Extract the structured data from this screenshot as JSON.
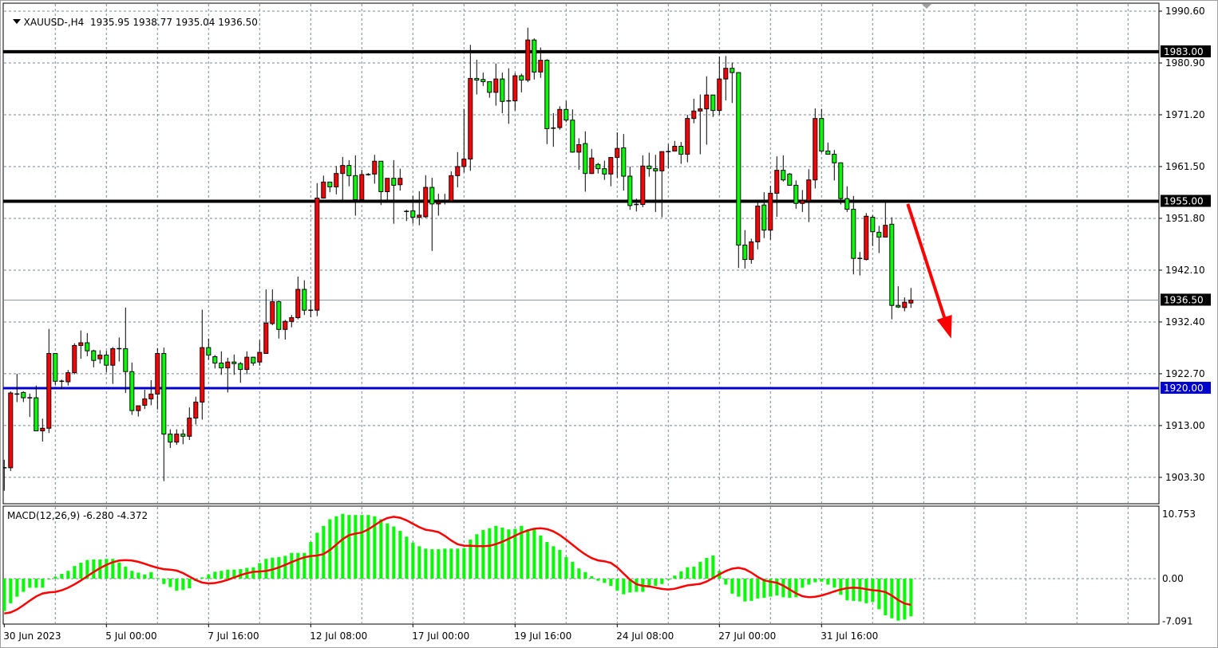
{
  "header": {
    "symbol": "XAUUSD-,H4",
    "ohlc": "1935.95 1938.77 1935.04 1936.50"
  },
  "macd_label": "MACD(12,26,9) -6.280 -4.372",
  "colors": {
    "bull_candle": "#ff0000",
    "bear_candle": "#00ff00",
    "candle_outline": "#000000",
    "grid": "#778899",
    "macd_histogram": "#00ff00",
    "macd_signal": "#ff0000",
    "support_line": "#0000cc",
    "resistance_line": "#000000",
    "arrow": "#ff0000"
  },
  "chart_data": [
    {
      "type": "candlestick",
      "symbol": "XAUUSD-",
      "timeframe": "H4",
      "ylim": [
        1899.5,
        1992.0
      ],
      "grid": true,
      "price_ticks": [
        "1990.60",
        "1980.90",
        "1971.20",
        "1961.50",
        "1951.80",
        "1942.10",
        "1932.40",
        "1922.70",
        "1913.00",
        "1903.30"
      ],
      "time_labels": [
        {
          "bar": 0,
          "label": "30 Jun 2023"
        },
        {
          "bar": 16,
          "label": "5 Jul 00:00"
        },
        {
          "bar": 32,
          "label": "7 Jul 16:00"
        },
        {
          "bar": 48,
          "label": "12 Jul 08:00"
        },
        {
          "bar": 64,
          "label": "17 Jul 00:00"
        },
        {
          "bar": 80,
          "label": "19 Jul 16:00"
        },
        {
          "bar": 96,
          "label": "24 Jul 08:00"
        },
        {
          "bar": 112,
          "label": "27 Jul 00:00"
        },
        {
          "bar": 128,
          "label": "31 Jul 16:00"
        }
      ],
      "ohlc_columns": [
        "open",
        "high",
        "low",
        "close"
      ],
      "ohlc": [
        [
          1905.1,
          1906.6,
          1900.8,
          1905.1
        ],
        [
          1905.1,
          1919.4,
          1904.5,
          1919.1
        ],
        [
          1918.9,
          1922.7,
          1917.4,
          1918.9
        ],
        [
          1919.2,
          1919.4,
          1917.4,
          1918.2
        ],
        [
          1918.2,
          1919.0,
          1914.6,
          1918.2
        ],
        [
          1918.2,
          1920.5,
          1912.0,
          1912.0
        ],
        [
          1912.0,
          1914.3,
          1910.0,
          1912.5
        ],
        [
          1912.5,
          1931.1,
          1911.6,
          1926.5
        ],
        [
          1926.5,
          1926.5,
          1920.5,
          1921.3
        ],
        [
          1921.3,
          1921.6,
          1919.8,
          1921.3
        ],
        [
          1921.2,
          1923.4,
          1920.5,
          1922.9
        ],
        [
          1922.9,
          1928.4,
          1922.6,
          1928.0
        ],
        [
          1928.0,
          1930.8,
          1925.5,
          1928.5
        ],
        [
          1928.5,
          1930.3,
          1926.0,
          1927.0
        ],
        [
          1927.0,
          1927.2,
          1923.9,
          1925.2
        ],
        [
          1925.5,
          1927.1,
          1924.6,
          1926.2
        ],
        [
          1926.2,
          1927.0,
          1923.0,
          1924.3
        ],
        [
          1924.3,
          1927.7,
          1920.8,
          1927.4
        ],
        [
          1927.4,
          1929.5,
          1925.0,
          1927.4
        ],
        [
          1927.4,
          1935.1,
          1919.1,
          1923.1
        ],
        [
          1923.1,
          1924.8,
          1915.0,
          1915.8
        ],
        [
          1915.8,
          1916.7,
          1914.7,
          1916.7
        ],
        [
          1916.8,
          1919.7,
          1916.1,
          1918.0
        ],
        [
          1918.0,
          1921.5,
          1916.8,
          1918.9
        ],
        [
          1918.9,
          1927.5,
          1916.0,
          1926.5
        ],
        [
          1926.5,
          1927.6,
          1902.6,
          1911.4
        ],
        [
          1911.4,
          1912.3,
          1908.8,
          1909.9
        ],
        [
          1909.9,
          1912.3,
          1909.4,
          1911.4
        ],
        [
          1911.4,
          1912.3,
          1909.5,
          1911.0
        ],
        [
          1911.0,
          1916.4,
          1910.3,
          1914.4
        ],
        [
          1914.4,
          1918.4,
          1913.2,
          1917.4
        ],
        [
          1917.4,
          1934.7,
          1914.1,
          1927.6
        ],
        [
          1927.6,
          1929.3,
          1925.3,
          1926.2
        ],
        [
          1925.9,
          1926.2,
          1923.7,
          1924.7
        ],
        [
          1924.7,
          1926.9,
          1922.5,
          1923.8
        ],
        [
          1923.8,
          1925.7,
          1919.2,
          1924.9
        ],
        [
          1924.9,
          1926.3,
          1922.5,
          1924.6
        ],
        [
          1924.6,
          1924.9,
          1921.0,
          1923.5
        ],
        [
          1923.5,
          1926.9,
          1922.6,
          1925.8
        ],
        [
          1925.8,
          1925.8,
          1924.2,
          1924.7
        ],
        [
          1924.9,
          1929.0,
          1924.2,
          1926.7
        ],
        [
          1926.5,
          1938.5,
          1926.5,
          1932.2
        ],
        [
          1932.1,
          1938.5,
          1931.8,
          1936.2
        ],
        [
          1936.2,
          1936.4,
          1929.3,
          1931.0
        ],
        [
          1931.0,
          1932.8,
          1929.1,
          1932.5
        ],
        [
          1932.5,
          1933.7,
          1931.4,
          1933.2
        ],
        [
          1933.2,
          1940.9,
          1932.9,
          1938.5
        ],
        [
          1938.5,
          1940.2,
          1933.7,
          1934.6
        ],
        [
          1934.6,
          1936.5,
          1933.3,
          1934.6
        ],
        [
          1934.6,
          1958.4,
          1933.5,
          1955.6
        ],
        [
          1955.6,
          1959.8,
          1955.5,
          1958.6
        ],
        [
          1958.6,
          1958.6,
          1956.7,
          1957.7
        ],
        [
          1957.7,
          1961.6,
          1956.3,
          1960.2
        ],
        [
          1960.2,
          1963.3,
          1955.3,
          1961.7
        ],
        [
          1961.7,
          1962.7,
          1957.8,
          1959.8
        ],
        [
          1959.8,
          1963.6,
          1952.3,
          1955.3
        ],
        [
          1955.3,
          1960.9,
          1955.1,
          1960.0
        ],
        [
          1960.0,
          1960.3,
          1959.8,
          1960.0
        ],
        [
          1960.1,
          1963.7,
          1958.3,
          1962.5
        ],
        [
          1962.5,
          1962.5,
          1954.3,
          1956.8
        ],
        [
          1956.8,
          1959.3,
          1955.3,
          1959.3
        ],
        [
          1959.3,
          1962.7,
          1950.8,
          1958.0
        ],
        [
          1958.1,
          1961.1,
          1957.0,
          1959.3
        ],
        [
          1953.1,
          1953.4,
          1951.3,
          1953.1
        ],
        [
          1953.2,
          1956.0,
          1950.8,
          1952.0
        ],
        [
          1952.0,
          1956.9,
          1950.5,
          1952.4
        ],
        [
          1952.1,
          1959.9,
          1951.9,
          1957.6
        ],
        [
          1957.6,
          1959.4,
          1945.7,
          1954.5
        ],
        [
          1954.5,
          1956.4,
          1952.3,
          1954.8
        ],
        [
          1955.1,
          1956.4,
          1954.4,
          1955.1
        ],
        [
          1955.1,
          1960.6,
          1954.8,
          1959.8
        ],
        [
          1959.8,
          1964.2,
          1957.6,
          1961.5
        ],
        [
          1961.5,
          1972.3,
          1960.4,
          1962.9
        ],
        [
          1962.9,
          1984.3,
          1960.7,
          1978.0
        ],
        [
          1978.0,
          1981.5,
          1975.0,
          1977.7
        ],
        [
          1977.8,
          1979.1,
          1976.6,
          1977.4
        ],
        [
          1977.4,
          1977.4,
          1974.4,
          1975.4
        ],
        [
          1975.4,
          1980.8,
          1972.9,
          1977.9
        ],
        [
          1977.9,
          1979.1,
          1971.5,
          1973.7
        ],
        [
          1973.8,
          1979.9,
          1969.5,
          1973.8
        ],
        [
          1973.8,
          1979.0,
          1972.0,
          1978.5
        ],
        [
          1978.5,
          1978.9,
          1975.4,
          1977.7
        ],
        [
          1977.7,
          1987.5,
          1977.3,
          1985.2
        ],
        [
          1985.2,
          1985.5,
          1977.8,
          1979.2
        ],
        [
          1979.2,
          1983.8,
          1978.1,
          1981.4
        ],
        [
          1981.4,
          1981.6,
          1965.7,
          1968.6
        ],
        [
          1968.7,
          1971.5,
          1965.2,
          1968.7
        ],
        [
          1968.8,
          1972.8,
          1968.4,
          1972.2
        ],
        [
          1972.2,
          1973.8,
          1969.8,
          1970.2
        ],
        [
          1970.2,
          1972.2,
          1964.1,
          1964.2
        ],
        [
          1964.2,
          1966.8,
          1960.9,
          1965.6
        ],
        [
          1965.8,
          1968.1,
          1956.8,
          1960.2
        ],
        [
          1960.2,
          1964.8,
          1960.1,
          1963.1
        ],
        [
          1961.9,
          1962.2,
          1960.2,
          1961.1
        ],
        [
          1961.1,
          1962.6,
          1959.0,
          1960.1
        ],
        [
          1960.1,
          1963.2,
          1957.8,
          1963.2
        ],
        [
          1963.2,
          1967.9,
          1959.4,
          1964.9
        ],
        [
          1965.0,
          1967.6,
          1957.0,
          1959.7
        ],
        [
          1959.7,
          1961.5,
          1953.4,
          1954.2
        ],
        [
          1954.4,
          1955.5,
          1953.1,
          1954.4
        ],
        [
          1954.4,
          1963.6,
          1953.9,
          1961.6
        ],
        [
          1961.6,
          1964.1,
          1959.6,
          1961.1
        ],
        [
          1961.1,
          1963.7,
          1953.0,
          1960.7
        ],
        [
          1960.7,
          1964.3,
          1952.0,
          1964.3
        ],
        [
          1964.3,
          1965.7,
          1961.2,
          1964.3
        ],
        [
          1964.4,
          1966.3,
          1964.3,
          1965.3
        ],
        [
          1965.3,
          1966.1,
          1962.0,
          1963.8
        ],
        [
          1963.8,
          1971.2,
          1962.3,
          1970.5
        ],
        [
          1970.5,
          1974.2,
          1969.6,
          1971.9
        ],
        [
          1971.9,
          1975.0,
          1963.8,
          1972.3
        ],
        [
          1972.3,
          1978.4,
          1965.6,
          1974.9
        ],
        [
          1974.9,
          1974.9,
          1970.8,
          1972.0
        ],
        [
          1972.0,
          1982.1,
          1971.2,
          1977.9
        ],
        [
          1977.9,
          1982.2,
          1973.9,
          1979.9
        ],
        [
          1979.9,
          1981.0,
          1973.4,
          1979.1
        ],
        [
          1979.1,
          1979.1,
          1942.5,
          1946.8
        ],
        [
          1946.8,
          1949.6,
          1942.4,
          1944.1
        ],
        [
          1944.1,
          1948.0,
          1943.3,
          1947.4
        ],
        [
          1947.4,
          1954.9,
          1946.0,
          1954.1
        ],
        [
          1954.3,
          1956.7,
          1948.1,
          1949.6
        ],
        [
          1949.6,
          1957.9,
          1947.8,
          1956.5
        ],
        [
          1956.5,
          1963.4,
          1952.1,
          1960.8
        ],
        [
          1960.8,
          1963.6,
          1958.7,
          1959.0
        ],
        [
          1960.1,
          1960.3,
          1957.9,
          1958.0
        ],
        [
          1958.0,
          1958.9,
          1953.6,
          1954.6
        ],
        [
          1954.6,
          1957.1,
          1953.0,
          1955.1
        ],
        [
          1955.1,
          1961.0,
          1951.1,
          1959.0
        ],
        [
          1959.0,
          1972.4,
          1957.4,
          1970.5
        ],
        [
          1970.5,
          1972.3,
          1964.1,
          1964.4
        ],
        [
          1964.4,
          1966.0,
          1963.8,
          1963.8
        ],
        [
          1963.8,
          1964.6,
          1958.9,
          1962.2
        ],
        [
          1962.2,
          1962.3,
          1954.4,
          1955.5
        ],
        [
          1955.5,
          1957.8,
          1953.0,
          1953.5
        ],
        [
          1953.5,
          1956.0,
          1941.3,
          1944.3
        ],
        [
          1944.3,
          1945.5,
          1941.1,
          1944.3
        ],
        [
          1944.1,
          1952.8,
          1943.9,
          1952.2
        ],
        [
          1952.0,
          1952.4,
          1946.6,
          1949.3
        ],
        [
          1949.2,
          1950.4,
          1945.3,
          1948.3
        ],
        [
          1948.3,
          1954.8,
          1948.3,
          1950.5
        ],
        [
          1950.7,
          1952.0,
          1932.9,
          1935.5
        ],
        [
          1935.5,
          1939.1,
          1935.0,
          1935.2
        ],
        [
          1935.1,
          1937.0,
          1934.4,
          1936.1
        ],
        [
          1935.95,
          1938.77,
          1935.04,
          1936.5
        ]
      ],
      "horizontal_lines": [
        {
          "price": 1983.0,
          "label": "1983.00",
          "color": "#000000"
        },
        {
          "price": 1955.0,
          "label": "1955.00",
          "color": "#000000"
        },
        {
          "price": 1920.0,
          "label": "1920.00",
          "color": "#0000cc"
        }
      ],
      "current_price": {
        "price": 1936.5,
        "label": "1936.50"
      },
      "arrow": {
        "from": {
          "bar": 141.5,
          "price": 1954.5
        },
        "to": {
          "bar": 148.3,
          "price": 1929.3
        },
        "direction": "down"
      }
    },
    {
      "type": "bar+line",
      "indicator": "MACD(12,26,9)",
      "ylim": [
        -7.091,
        10.753
      ],
      "ticks": [
        "10.753",
        "0.00",
        "-7.091"
      ],
      "histogram": [
        -5.4,
        -4.1,
        -3.0,
        -2.2,
        -1.5,
        -1.5,
        -1.5,
        -0.1,
        0.35,
        0.8,
        1.3,
        2.1,
        2.65,
        3.1,
        3.2,
        3.2,
        3.3,
        3.3,
        2.7,
        2.0,
        1.3,
        1.0,
        0.7,
        1.1,
        0.1,
        -0.9,
        -1.4,
        -2.0,
        -1.9,
        -1.6,
        -0.4,
        0.2,
        0.7,
        1.15,
        1.3,
        1.5,
        1.5,
        1.6,
        1.8,
        1.9,
        2.6,
        3.3,
        3.5,
        3.6,
        3.8,
        4.3,
        4.3,
        4.3,
        6.1,
        7.65,
        8.8,
        9.9,
        10.4,
        10.8,
        10.6,
        10.6,
        10.6,
        10.6,
        10.4,
        9.9,
        9.2,
        8.7,
        7.96,
        7.0,
        6.0,
        5.4,
        5.0,
        4.9,
        4.9,
        5.0,
        5.0,
        5.0,
        5.1,
        6.5,
        7.4,
        8.1,
        8.4,
        8.8,
        8.5,
        8.2,
        8.3,
        8.8,
        8.2,
        8.2,
        7.2,
        6.1,
        5.4,
        4.8,
        3.6,
        2.8,
        1.7,
        1.1,
        0.4,
        -0.35,
        -0.7,
        -1.2,
        -2.0,
        -2.6,
        -2.3,
        -2.2,
        -2.2,
        -1.4,
        -1.2,
        -0.9,
        -0.2,
        0.5,
        1.2,
        1.9,
        2.0,
        2.8,
        3.45,
        3.85,
        1.3,
        -1.0,
        -2.5,
        -3.0,
        -3.8,
        -3.7,
        -3.3,
        -3.2,
        -3.0,
        -2.8,
        -3.1,
        -3.2,
        -3.1,
        -1.5,
        -1.0,
        -0.6,
        -0.5,
        -1.0,
        -1.5,
        -2.7,
        -3.6,
        -3.7,
        -3.8,
        -4.1,
        -3.9,
        -5.1,
        -6.1,
        -6.6,
        -7.0,
        -6.8,
        -6.28
      ],
      "signal_points": [
        [
          0,
          -5.8
        ],
        [
          7,
          -2.3
        ],
        [
          19,
          3.1
        ],
        [
          26,
          1.5
        ],
        [
          32,
          -0.8
        ],
        [
          40,
          1.2
        ],
        [
          49,
          3.85
        ],
        [
          55,
          7.5
        ],
        [
          61,
          10.3
        ],
        [
          67,
          8.0
        ],
        [
          72,
          5.5
        ],
        [
          75,
          5.4
        ],
        [
          84,
          8.4
        ],
        [
          94,
          2.9
        ],
        [
          100,
          -1.2
        ],
        [
          104,
          -1.8
        ],
        [
          108,
          -1.0
        ],
        [
          115,
          1.8
        ],
        [
          120,
          -0.5
        ],
        [
          126,
          -3.1
        ],
        [
          133,
          -1.5
        ],
        [
          137,
          -2.0
        ],
        [
          142,
          -4.372
        ]
      ]
    }
  ]
}
